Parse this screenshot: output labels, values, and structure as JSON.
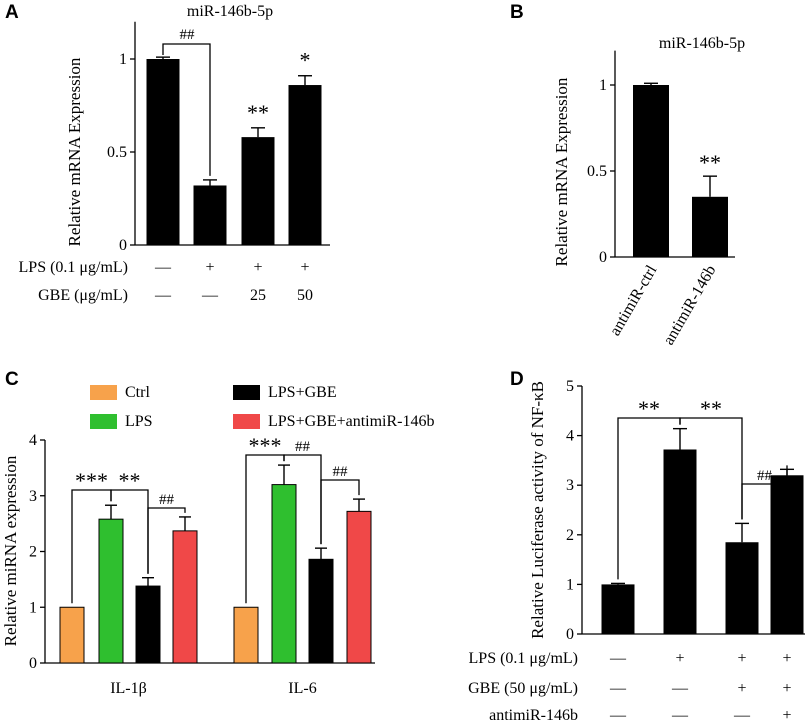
{
  "chart_data": [
    {
      "panel": "A",
      "type": "bar",
      "title": "miR-146b-5p",
      "ylabel": "Relative mRNA Expression",
      "ylim": [
        0,
        1.2
      ],
      "yticks": [
        "0",
        "0.5",
        "1"
      ],
      "values": [
        1.0,
        0.32,
        0.58,
        0.86
      ],
      "errors": [
        0.01,
        0.03,
        0.05,
        0.05
      ],
      "sig_labels": [
        "",
        "",
        "**",
        "*"
      ],
      "bracket_label": "##",
      "treatment_rows": [
        {
          "label": "LPS (0.1 μg/mL)",
          "cells": [
            "—",
            "+",
            "+",
            "+"
          ]
        },
        {
          "label": "GBE (μg/mL)",
          "cells": [
            "—",
            "—",
            "25",
            "50"
          ]
        }
      ],
      "bar_color": "#000000"
    },
    {
      "panel": "B",
      "type": "bar",
      "title": "miR-146b-5p",
      "ylabel": "Relative mRNA Expression",
      "ylim": [
        0,
        1.2
      ],
      "yticks": [
        "0",
        "0.5",
        "1"
      ],
      "categories": [
        "antimiR-ctrl",
        "antimiR-146b"
      ],
      "values": [
        1.0,
        0.35
      ],
      "errors": [
        0.01,
        0.12
      ],
      "sig_labels": [
        "",
        "**"
      ],
      "bar_color": "#000000"
    },
    {
      "panel": "C",
      "type": "bar",
      "ylabel": "Relative miRNA expression",
      "ylim": [
        0,
        4
      ],
      "yticks": [
        "0",
        "1",
        "2",
        "3",
        "4"
      ],
      "categories": [
        "IL-1β",
        "IL-6"
      ],
      "series": [
        {
          "name": "Ctrl",
          "color": "#f7a24b",
          "values": [
            1.0,
            1.0
          ],
          "errors": [
            0.0,
            0.0
          ]
        },
        {
          "name": "LPS",
          "color": "#2fbf2f",
          "values": [
            2.58,
            3.2
          ],
          "errors": [
            0.25,
            0.35
          ]
        },
        {
          "name": "LPS+GBE",
          "color": "#000000",
          "values": [
            1.38,
            1.86
          ],
          "errors": [
            0.15,
            0.2
          ]
        },
        {
          "name": "LPS+GBE+antimiR-146b",
          "color": "#f04848",
          "values": [
            2.37,
            2.72
          ],
          "errors": [
            0.25,
            0.22
          ]
        }
      ],
      "brackets": [
        {
          "group": 0,
          "from": 0,
          "to": 1,
          "label": "***"
        },
        {
          "group": 0,
          "from": 1,
          "to": 2,
          "label": "**"
        },
        {
          "group": 0,
          "from": 2,
          "to": 3,
          "label": "##"
        },
        {
          "group": 1,
          "from": 0,
          "to": 1,
          "label": "***"
        },
        {
          "group": 1,
          "from": 1,
          "to": 2,
          "label": "##"
        },
        {
          "group": 1,
          "from": 2,
          "to": 3,
          "label": "##"
        }
      ]
    },
    {
      "panel": "D",
      "type": "bar",
      "ylabel": "Relative Luciferase activity of NF-κB",
      "ylim": [
        0,
        5
      ],
      "yticks": [
        "0",
        "1",
        "2",
        "3",
        "4",
        "5"
      ],
      "values": [
        1.0,
        3.72,
        1.85,
        3.2
      ],
      "errors": [
        0.02,
        0.42,
        0.38,
        0.12
      ],
      "brackets": [
        {
          "from": 0,
          "to": 1,
          "label": "**"
        },
        {
          "from": 1,
          "to": 2,
          "label": "**"
        },
        {
          "from": 2,
          "to": 3,
          "label": "##"
        }
      ],
      "treatment_rows": [
        {
          "label": "LPS (0.1 μg/mL)",
          "cells": [
            "—",
            "+",
            "+",
            "+"
          ]
        },
        {
          "label": "GBE (50 μg/mL)",
          "cells": [
            "—",
            "—",
            "+",
            "+"
          ]
        },
        {
          "label": "antimiR-146b",
          "cells": [
            "—",
            "—",
            "—",
            "+"
          ]
        }
      ],
      "bar_color": "#000000"
    }
  ]
}
